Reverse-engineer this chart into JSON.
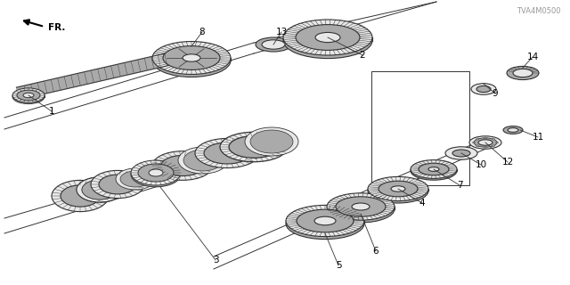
{
  "bg_color": "#ffffff",
  "lc": "#333333",
  "gc": "#888888",
  "footnote": "TVA4M0500",
  "fr_label": "FR.",
  "gear_gray": "#c8c8c8",
  "gear_dark": "#888888",
  "gear_mid": "#aaaaaa",
  "gear_light": "#e8e8e8"
}
